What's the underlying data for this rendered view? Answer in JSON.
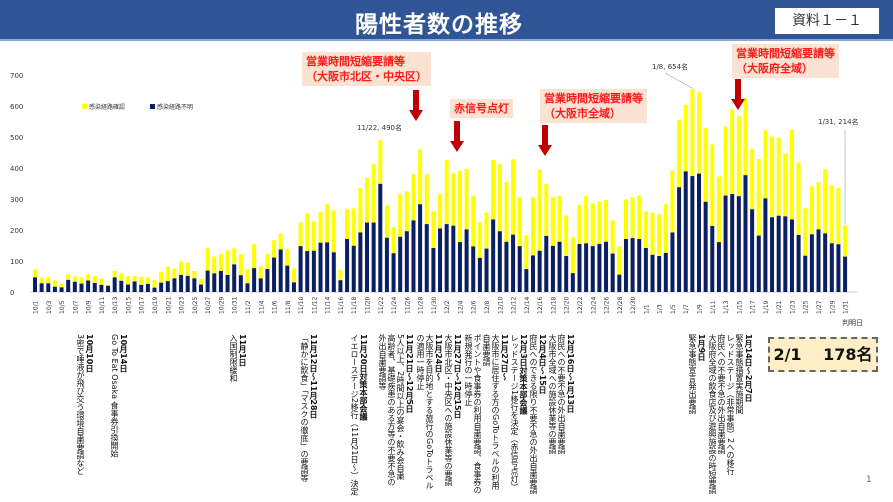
{
  "header": {
    "title": "陽性者数の推移",
    "doc_number": "資料１－１"
  },
  "chart_data": {
    "type": "bar",
    "stacked": true,
    "title": "陽性者数の推移",
    "xlabel": "判明日",
    "ylabel": "",
    "ylim": [
      0,
      700
    ],
    "yticks": [
      0,
      100,
      200,
      300,
      400,
      500,
      600,
      700
    ],
    "legend": {
      "placement": "top-left",
      "entries": [
        "感染経路確認",
        "感染経路不明"
      ]
    },
    "colors": {
      "感染経路確認": "#ffff00",
      "感染経路不明": "#0b1f63"
    },
    "categories": [
      "10/1",
      "10/2",
      "10/3",
      "10/4",
      "10/5",
      "10/6",
      "10/7",
      "10/8",
      "10/9",
      "10/10",
      "10/11",
      "10/12",
      "10/13",
      "10/14",
      "10/15",
      "10/16",
      "10/17",
      "10/18",
      "10/19",
      "10/20",
      "10/21",
      "10/22",
      "10/23",
      "10/24",
      "10/25",
      "10/26",
      "10/27",
      "10/28",
      "10/29",
      "10/30",
      "10/31",
      "11/1",
      "11/2",
      "11/3",
      "11/4",
      "11/5",
      "11/6",
      "11/7",
      "11/8",
      "11/9",
      "11/10",
      "11/11",
      "11/12",
      "11/13",
      "11/14",
      "11/15",
      "11/16",
      "11/17",
      "11/18",
      "11/19",
      "11/20",
      "11/21",
      "11/22",
      "11/23",
      "11/24",
      "11/25",
      "11/26",
      "11/27",
      "11/28",
      "11/29",
      "11/30",
      "12/1",
      "12/2",
      "12/3",
      "12/4",
      "12/5",
      "12/6",
      "12/7",
      "12/8",
      "12/9",
      "12/10",
      "12/11",
      "12/12",
      "12/13",
      "12/14",
      "12/15",
      "12/16",
      "12/17",
      "12/18",
      "12/19",
      "12/20",
      "12/21",
      "12/22",
      "12/23",
      "12/24",
      "12/25",
      "12/26",
      "12/27",
      "12/28",
      "12/29",
      "12/30",
      "12/31",
      "1/1",
      "1/2",
      "1/3",
      "1/4",
      "1/5",
      "1/6",
      "1/7",
      "1/8",
      "1/9",
      "1/10",
      "1/11",
      "1/12",
      "1/13",
      "1/14",
      "1/15",
      "1/16",
      "1/17",
      "1/18",
      "1/19",
      "1/20",
      "1/21",
      "1/22",
      "1/23",
      "1/24",
      "1/25",
      "1/26",
      "1/27",
      "1/28",
      "1/29",
      "1/30",
      "1/31"
    ],
    "totals": [
      73,
      47,
      49,
      38,
      28,
      57,
      51,
      47,
      57,
      51,
      43,
      24,
      68,
      60,
      51,
      52,
      48,
      48,
      38,
      65,
      81,
      76,
      99,
      95,
      68,
      42,
      141,
      115,
      123,
      134,
      141,
      122,
      73,
      155,
      83,
      123,
      167,
      189,
      139,
      76,
      225,
      254,
      228,
      259,
      283,
      263,
      71,
      267,
      270,
      335,
      368,
      412,
      490,
      280,
      209,
      316,
      325,
      381,
      460,
      380,
      260,
      316,
      426,
      383,
      392,
      397,
      310,
      225,
      256,
      426,
      413,
      355,
      428,
      306,
      183,
      305,
      395,
      348,
      306,
      310,
      247,
      177,
      281,
      310,
      286,
      292,
      297,
      231,
      147,
      299,
      305,
      311,
      260,
      256,
      251,
      283,
      392,
      556,
      604,
      654,
      644,
      529,
      476,
      373,
      534,
      589,
      567,
      626,
      461,
      429,
      522,
      502,
      498,
      447,
      523,
      418,
      270,
      341,
      354,
      396,
      344,
      335,
      214
    ],
    "series": [
      {
        "name": "感染経路不明",
        "values": [
          47,
          28,
          28,
          17,
          15,
          39,
          33,
          27,
          37,
          29,
          23,
          20,
          47,
          36,
          24,
          34,
          23,
          26,
          14,
          30,
          35,
          44,
          55,
          52,
          44,
          24,
          69,
          60,
          68,
          55,
          89,
          54,
          28,
          77,
          44,
          74,
          111,
          137,
          85,
          31,
          148,
          132,
          133,
          159,
          160,
          128,
          38,
          171,
          149,
          192,
          224,
          224,
          349,
          175,
          125,
          178,
          196,
          231,
          283,
          219,
          142,
          205,
          219,
          214,
          161,
          202,
          147,
          110,
          140,
          234,
          196,
          162,
          185,
          148,
          74,
          118,
          133,
          181,
          149,
          162,
          116,
          61,
          155,
          157,
          148,
          155,
          162,
          124,
          56,
          171,
          174,
          171,
          142,
          120,
          116,
          126,
          192,
          338,
          389,
          374,
          382,
          291,
          213,
          161,
          311,
          316,
          309,
          377,
          267,
          182,
          302,
          241,
          246,
          244,
          234,
          184,
          117,
          186,
          202,
          189,
          157,
          154,
          114
        ]
      },
      {
        "name": "感染経路確認",
        "values": "totals minus 感染経路不明"
      }
    ],
    "peak_labels": [
      "11/22, 490名",
      "1/8, 654名",
      "1/31, 214名"
    ],
    "callouts": [
      {
        "lines": [
          "営業時間短縮要請等",
          "（大阪市北区・中央区）"
        ]
      },
      {
        "lines": [
          "赤信号点灯"
        ]
      },
      {
        "lines": [
          "営業時間短縮要請等",
          "（大阪市全域）"
        ]
      },
      {
        "lines": [
          "営業時間短縮要請等",
          "（大阪府全域）"
        ]
      }
    ],
    "arrow_color": "#c00000"
  },
  "annotations": [
    {
      "date": "10月10日",
      "lines": [
        "3密で唾液が飛び交う環境自粛要請など"
      ]
    },
    {
      "date": "10月14日",
      "lines": [
        "Go To Eat Osaka 食事券引換開始"
      ]
    },
    {
      "date": "11月1日",
      "lines": [
        "入国制限緩和"
      ]
    },
    {
      "date": "11月12日～11月28日",
      "lines": [
        "「静かに飲食」「マスクの徹底」の要請等"
      ]
    },
    {
      "date": "11月20日対策本部会議",
      "lines": [
        "イエローステージ2移行（11月21日～）決定"
      ]
    },
    {
      "date": "11月21日～12月5日",
      "lines": [
        "5人以上、2時間以上の宴会・飲み会自粛",
        "高齢者、基礎疾患のある方等の不要不急の",
        "外出自粛要請等"
      ]
    },
    {
      "date": "11月24日～",
      "lines": [
        "大阪市を目的地とする旅行のGoToトラベル",
        "の適用一時停止"
      ]
    },
    {
      "date": "11月27日～12月15日",
      "lines": [
        "大阪市北区・中央区への施設休業等の要請"
      ]
    },
    {
      "date": "11月27日～",
      "lines": [
        "大阪市に居住する方のGoToトラベルの利用",
        "自粛要請",
        "ポイントや食事券の利用自粛要請、食事券の",
        "新規発行の一時停止"
      ]
    },
    {
      "date": "12月3日対策本部会議",
      "lines": [
        "レッドステージ1移行を決定（赤信号点灯）"
      ]
    },
    {
      "date": "12月4日～15日",
      "lines": [
        "府民へのできる限り不要不急の外出自粛要請"
      ]
    },
    {
      "date": "12月16日～1月13日",
      "lines": [
        "府民への不要不急の外出自粛要請",
        "大阪市全域への施設休業等の要請"
      ]
    },
    {
      "date": "1月9日",
      "lines": [
        "緊急事態宣言発出要請"
      ]
    },
    {
      "date": "1月14日～2月7日",
      "lines": [
        "緊急事態措置実施期間",
        "レッドステージ（非常事態）2への移行",
        "府民への不要不急の外出自粛要請",
        "大阪府全域の飲食店及び遊興施設の時短要請"
      ]
    }
  ],
  "summary": "2/1　 178名",
  "page_number": "1"
}
